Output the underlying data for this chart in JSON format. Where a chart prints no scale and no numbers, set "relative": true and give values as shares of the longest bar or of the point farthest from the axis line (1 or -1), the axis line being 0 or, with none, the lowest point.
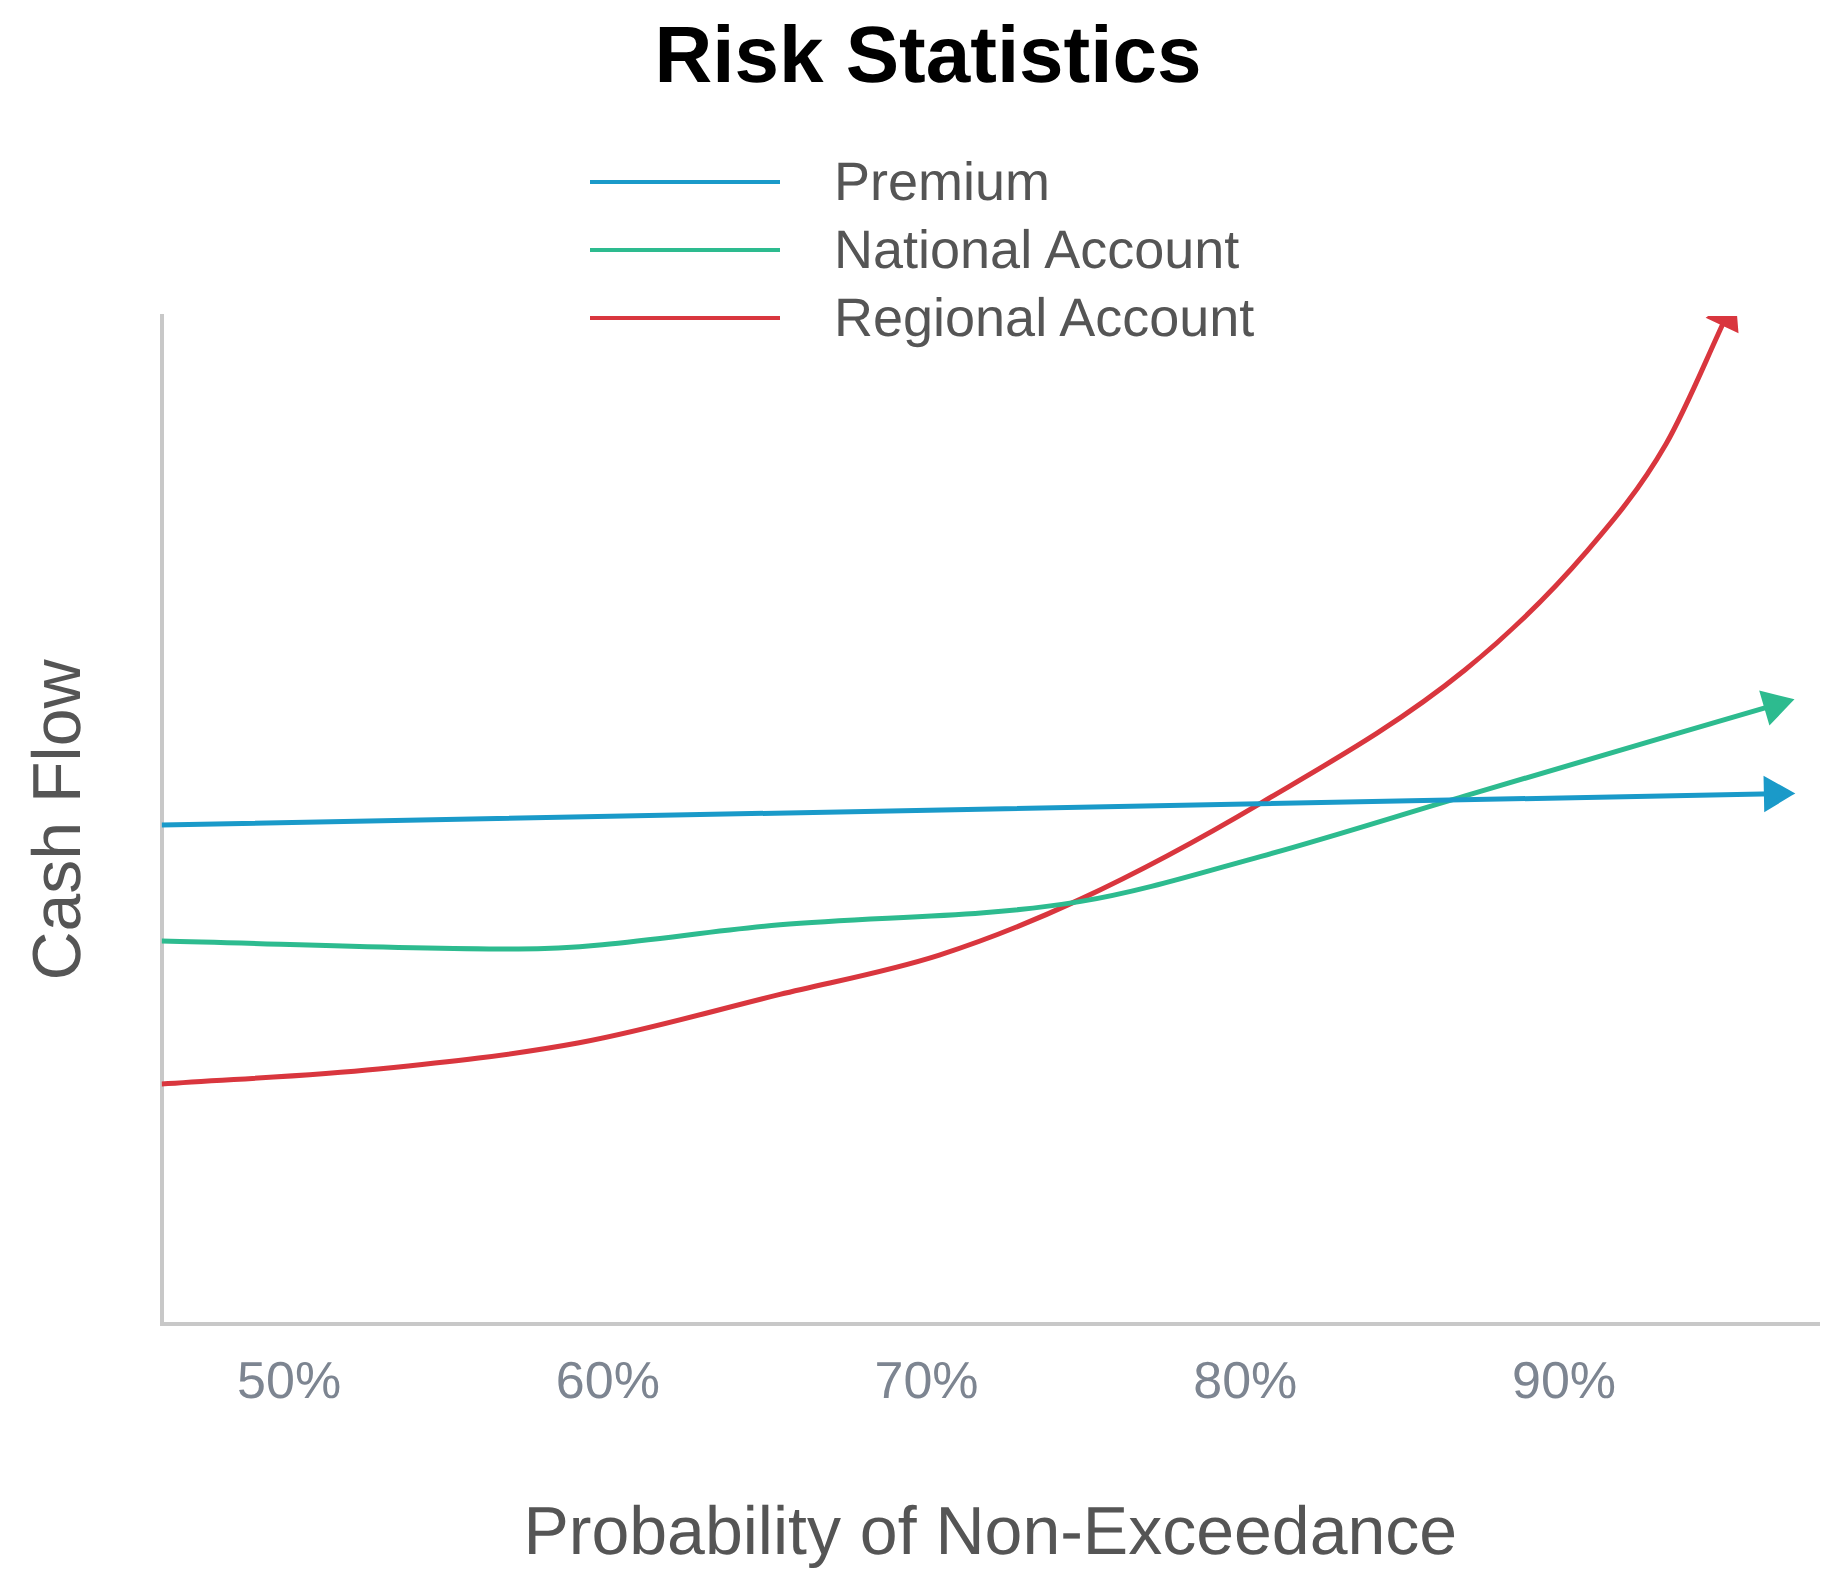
{
  "chart_data": {
    "type": "line",
    "title": "Risk Statistics",
    "xlabel": "Probability of Non-Exceedance",
    "ylabel": "Cash Flow",
    "relative": true,
    "legend": "top",
    "grid": false,
    "xlim": [
      46,
      98
    ],
    "xticks": [
      {
        "value": 50,
        "label": "50%"
      },
      {
        "value": 60,
        "label": "60%"
      },
      {
        "value": 70,
        "label": "70%"
      },
      {
        "value": 80,
        "label": "80%"
      },
      {
        "value": 90,
        "label": "90%"
      }
    ],
    "series": [
      {
        "name": "Premium",
        "color": "#1a9ac9",
        "x": [
          46,
          96.6
        ],
        "values": [
          0.495,
          0.526
        ]
      },
      {
        "name": "National Account",
        "color": "#2dbb8f",
        "x": [
          46,
          57.2,
          65.4,
          74.8,
          80.5,
          86.9,
          96.6
        ],
        "values": [
          0.38,
          0.372,
          0.396,
          0.419,
          0.464,
          0.524,
          0.614
        ]
      },
      {
        "name": "Regional Account",
        "color": "#d9363e",
        "x": [
          46,
          52.8,
          59.1,
          65.4,
          70.4,
          74.8,
          80.5,
          86.9,
          90.7,
          93.2,
          95.1
        ],
        "values": [
          0.238,
          0.253,
          0.279,
          0.327,
          0.366,
          0.421,
          0.517,
          0.649,
          0.766,
          0.873,
          1.0
        ]
      }
    ]
  }
}
